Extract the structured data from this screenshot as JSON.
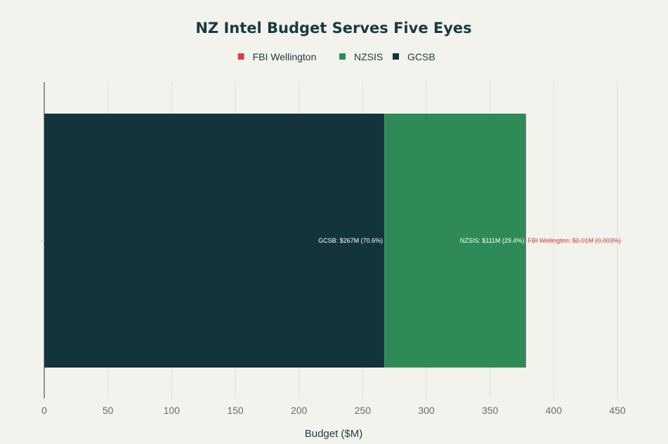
{
  "chart_data": {
    "type": "bar",
    "orientation": "horizontal",
    "stacked": true,
    "title": "NZ Intel Budget Serves Five Eyes",
    "xlabel": "Budget ($M)",
    "ylabel": "",
    "xlim": [
      0,
      450
    ],
    "x_ticks": [
      0,
      50,
      100,
      150,
      200,
      250,
      300,
      350,
      400,
      450
    ],
    "grid": true,
    "legend_position": "top-center",
    "legend": [
      {
        "label": "FBI Wellington",
        "color": "#d94040"
      },
      {
        "label": "NZSIS",
        "color": "#2e8b57"
      },
      {
        "label": "GCSB",
        "color": "#13343b"
      }
    ],
    "series": [
      {
        "name": "GCSB",
        "value": 267,
        "color": "#13343b",
        "label": "GCSB: $267M (70.6%)",
        "label_color": "#ffffff"
      },
      {
        "name": "NZSIS",
        "value": 111,
        "color": "#2e8b57",
        "label": "NZSIS: $111M (29.4%)",
        "label_color": "#ffffff"
      },
      {
        "name": "FBI Wellington",
        "value": 0.01,
        "color": "#d94040",
        "label": "FBI Wellington: $0.01M (0.003%)",
        "label_color": "#d94040"
      }
    ]
  }
}
